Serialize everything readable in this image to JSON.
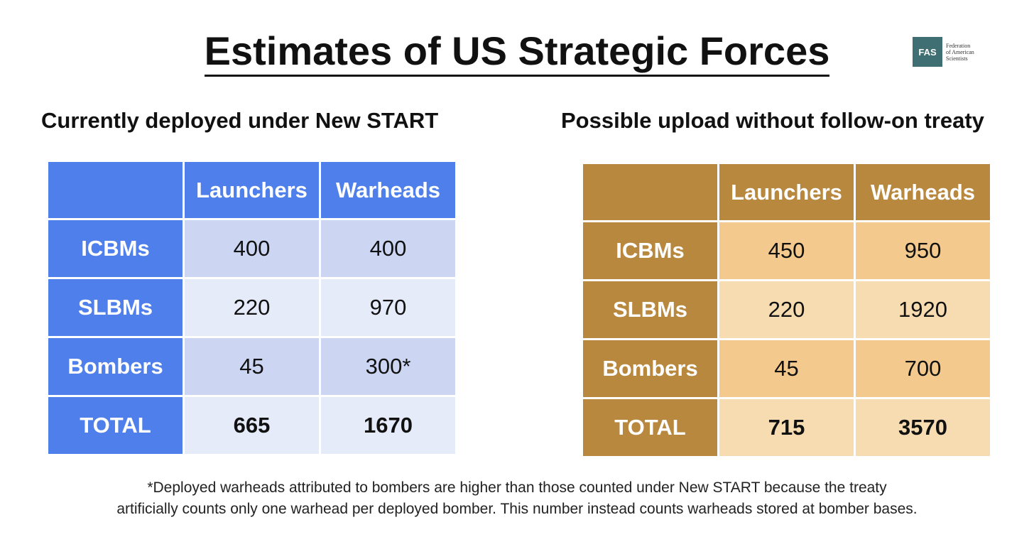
{
  "title": "Estimates of US Strategic Forces",
  "logo": {
    "abbr": "FAS",
    "line1": "Federation",
    "line2": "of American",
    "line3": "Scientists"
  },
  "colors": {
    "left_header": "#4f7fea",
    "left_band_dark": "#ccd6f3",
    "left_band_light": "#e6ebfa",
    "right_header": "#b8883f",
    "right_band_dark": "#f3c98d",
    "right_band_light": "#f6dcb0"
  },
  "chart_data": [
    {
      "type": "table",
      "title": "Currently deployed under New START",
      "columns": [
        "",
        "Launchers",
        "Warheads"
      ],
      "rows": [
        {
          "label": "ICBMs",
          "values": [
            "400",
            "400"
          ]
        },
        {
          "label": "SLBMs",
          "values": [
            "220",
            "970"
          ]
        },
        {
          "label": "Bombers",
          "values": [
            "45",
            "300*"
          ]
        },
        {
          "label": "TOTAL",
          "values": [
            "665",
            "1670"
          ]
        }
      ]
    },
    {
      "type": "table",
      "title": "Possible upload without follow-on treaty",
      "columns": [
        "",
        "Launchers",
        "Warheads"
      ],
      "rows": [
        {
          "label": "ICBMs",
          "values": [
            "450",
            "950"
          ]
        },
        {
          "label": "SLBMs",
          "values": [
            "220",
            "1920"
          ]
        },
        {
          "label": "Bombers",
          "values": [
            "45",
            "700"
          ]
        },
        {
          "label": "TOTAL",
          "values": [
            "715",
            "3570"
          ]
        }
      ]
    }
  ],
  "footnote": {
    "line1": "*Deployed warheads attributed to bombers are higher than those counted under New START because the treaty",
    "line2": "artificially counts only one warhead per deployed bomber. This number instead counts warheads stored at bomber bases."
  }
}
